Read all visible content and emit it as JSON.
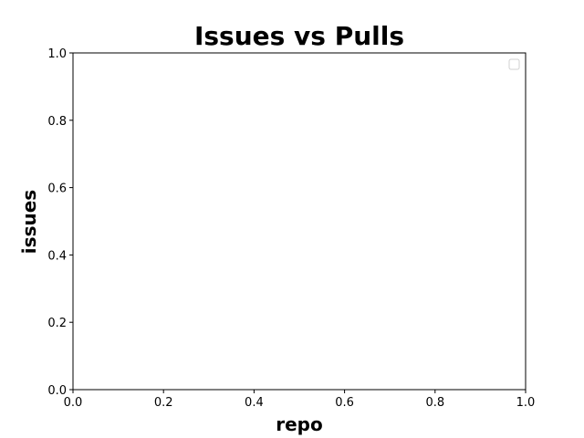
{
  "chart_data": {
    "type": "scatter",
    "title": "Issues vs Pulls",
    "xlabel": "repo",
    "ylabel": "issues",
    "xlim": [
      0.0,
      1.0
    ],
    "ylim": [
      0.0,
      1.0
    ],
    "x_ticks": [
      "0.0",
      "0.2",
      "0.4",
      "0.6",
      "0.8",
      "1.0"
    ],
    "y_ticks": [
      "0.0",
      "0.2",
      "0.4",
      "0.6",
      "0.8",
      "1.0"
    ],
    "series": [],
    "grid": false,
    "legend": {
      "position": "top-right",
      "entries": []
    }
  }
}
